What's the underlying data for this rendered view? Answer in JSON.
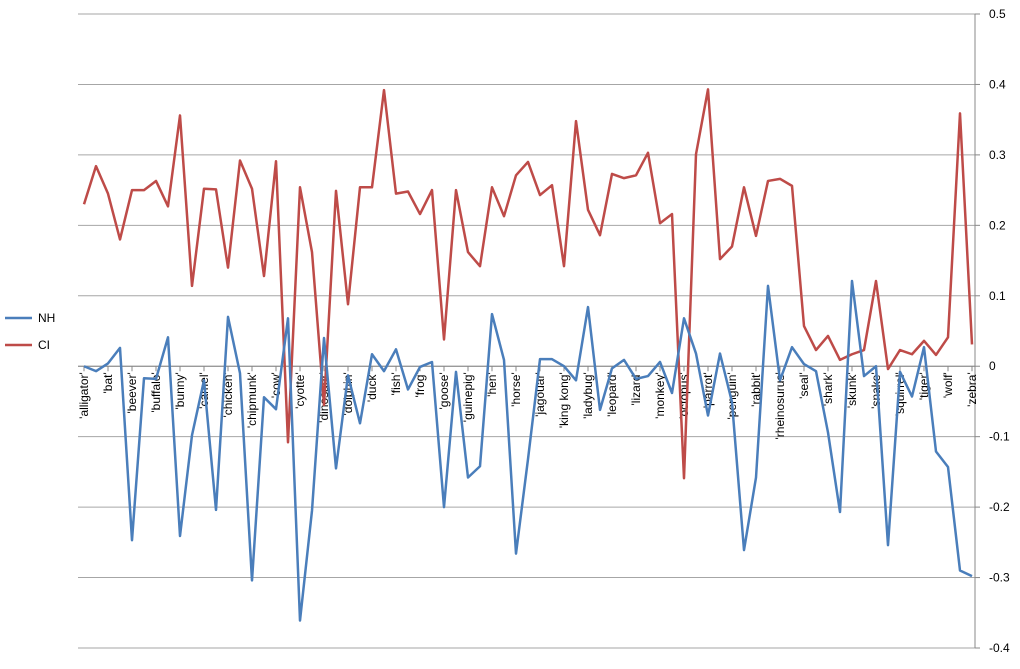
{
  "chart_data": {
    "type": "line",
    "categories": [
      "'alligator'",
      null,
      "'bat'",
      null,
      "'beever'",
      null,
      "'buffalo'",
      null,
      "'bunny'",
      null,
      "'camel'",
      null,
      "'chicken'",
      null,
      "'chipmunk'",
      null,
      "'cow'",
      null,
      "'cyotte'",
      null,
      "'dinosaur'",
      null,
      "'dolphin'",
      null,
      "'duck'",
      null,
      "'fish'",
      null,
      "'frog'",
      null,
      "'goose'",
      null,
      "'guinepig'",
      null,
      "'hen'",
      null,
      "'horse'",
      null,
      "'jagouar'",
      null,
      "'king kong'",
      null,
      "'ladybug'",
      null,
      "'leopard'",
      null,
      "'lizard'",
      null,
      "'monkey'",
      null,
      "'octopus'",
      null,
      "'parrot'",
      null,
      "'penguin'",
      null,
      "'rabbit'",
      null,
      "'rheinosurus'",
      null,
      "'seal'",
      null,
      "'shark'",
      null,
      "'skunk'",
      null,
      "'snake'",
      null,
      "'squirrel'",
      null,
      "'tiger'",
      null,
      "'wolf'",
      null,
      "'zebra'"
    ],
    "series": [
      {
        "name": "NH",
        "color": "#4a7ebb",
        "values": [
          0.0,
          -0.007,
          0.004,
          0.026,
          -0.247,
          -0.017,
          -0.018,
          0.041,
          -0.241,
          -0.098,
          -0.02,
          -0.204,
          0.07,
          -0.01,
          -0.304,
          -0.044,
          -0.061,
          0.068,
          -0.361,
          -0.205,
          0.04,
          -0.145,
          -0.013,
          -0.081,
          0.017,
          -0.007,
          0.024,
          -0.033,
          -0.001,
          0.006,
          -0.2,
          -0.008,
          -0.158,
          -0.142,
          0.074,
          0.009,
          -0.266,
          -0.132,
          0.01,
          0.01,
          0.0,
          -0.02,
          0.084,
          -0.062,
          -0.003,
          0.009,
          -0.018,
          -0.014,
          0.006,
          -0.038,
          0.068,
          0.018,
          -0.07,
          0.018,
          -0.051,
          -0.261,
          -0.158,
          0.114,
          -0.02,
          0.027,
          0.003,
          -0.007,
          -0.094,
          -0.207,
          0.121,
          -0.014,
          0.0,
          -0.254,
          -0.008,
          -0.043,
          0.027,
          -0.121,
          -0.143,
          -0.29,
          -0.298
        ]
      },
      {
        "name": "CI",
        "color": "#be4b48",
        "values": [
          0.23,
          0.284,
          0.245,
          0.18,
          0.25,
          0.25,
          0.263,
          0.227,
          0.356,
          0.114,
          0.252,
          0.251,
          0.14,
          0.292,
          0.252,
          0.128,
          0.291,
          -0.108,
          0.254,
          0.162,
          -0.055,
          0.249,
          0.088,
          0.254,
          0.254,
          0.392,
          0.245,
          0.248,
          0.216,
          0.25,
          0.038,
          0.25,
          0.162,
          0.142,
          0.254,
          0.213,
          0.271,
          0.29,
          0.243,
          0.257,
          0.142,
          0.348,
          0.222,
          0.186,
          0.273,
          0.267,
          0.271,
          0.303,
          0.203,
          0.216,
          -0.159,
          0.301,
          0.393,
          0.152,
          0.17,
          0.254,
          0.185,
          0.263,
          0.266,
          0.256,
          0.057,
          0.023,
          0.043,
          0.009,
          0.017,
          0.023,
          0.121,
          -0.004,
          0.023,
          0.017,
          0.036,
          0.016,
          0.041,
          0.359,
          0.031
        ]
      }
    ],
    "ylim": [
      -0.4,
      0.5
    ],
    "yticks": [
      0.5,
      0.4,
      0.3,
      0.2,
      0.1,
      0,
      -0.1,
      -0.2,
      -0.3,
      -0.4
    ],
    "grid": true,
    "legend": "left"
  }
}
